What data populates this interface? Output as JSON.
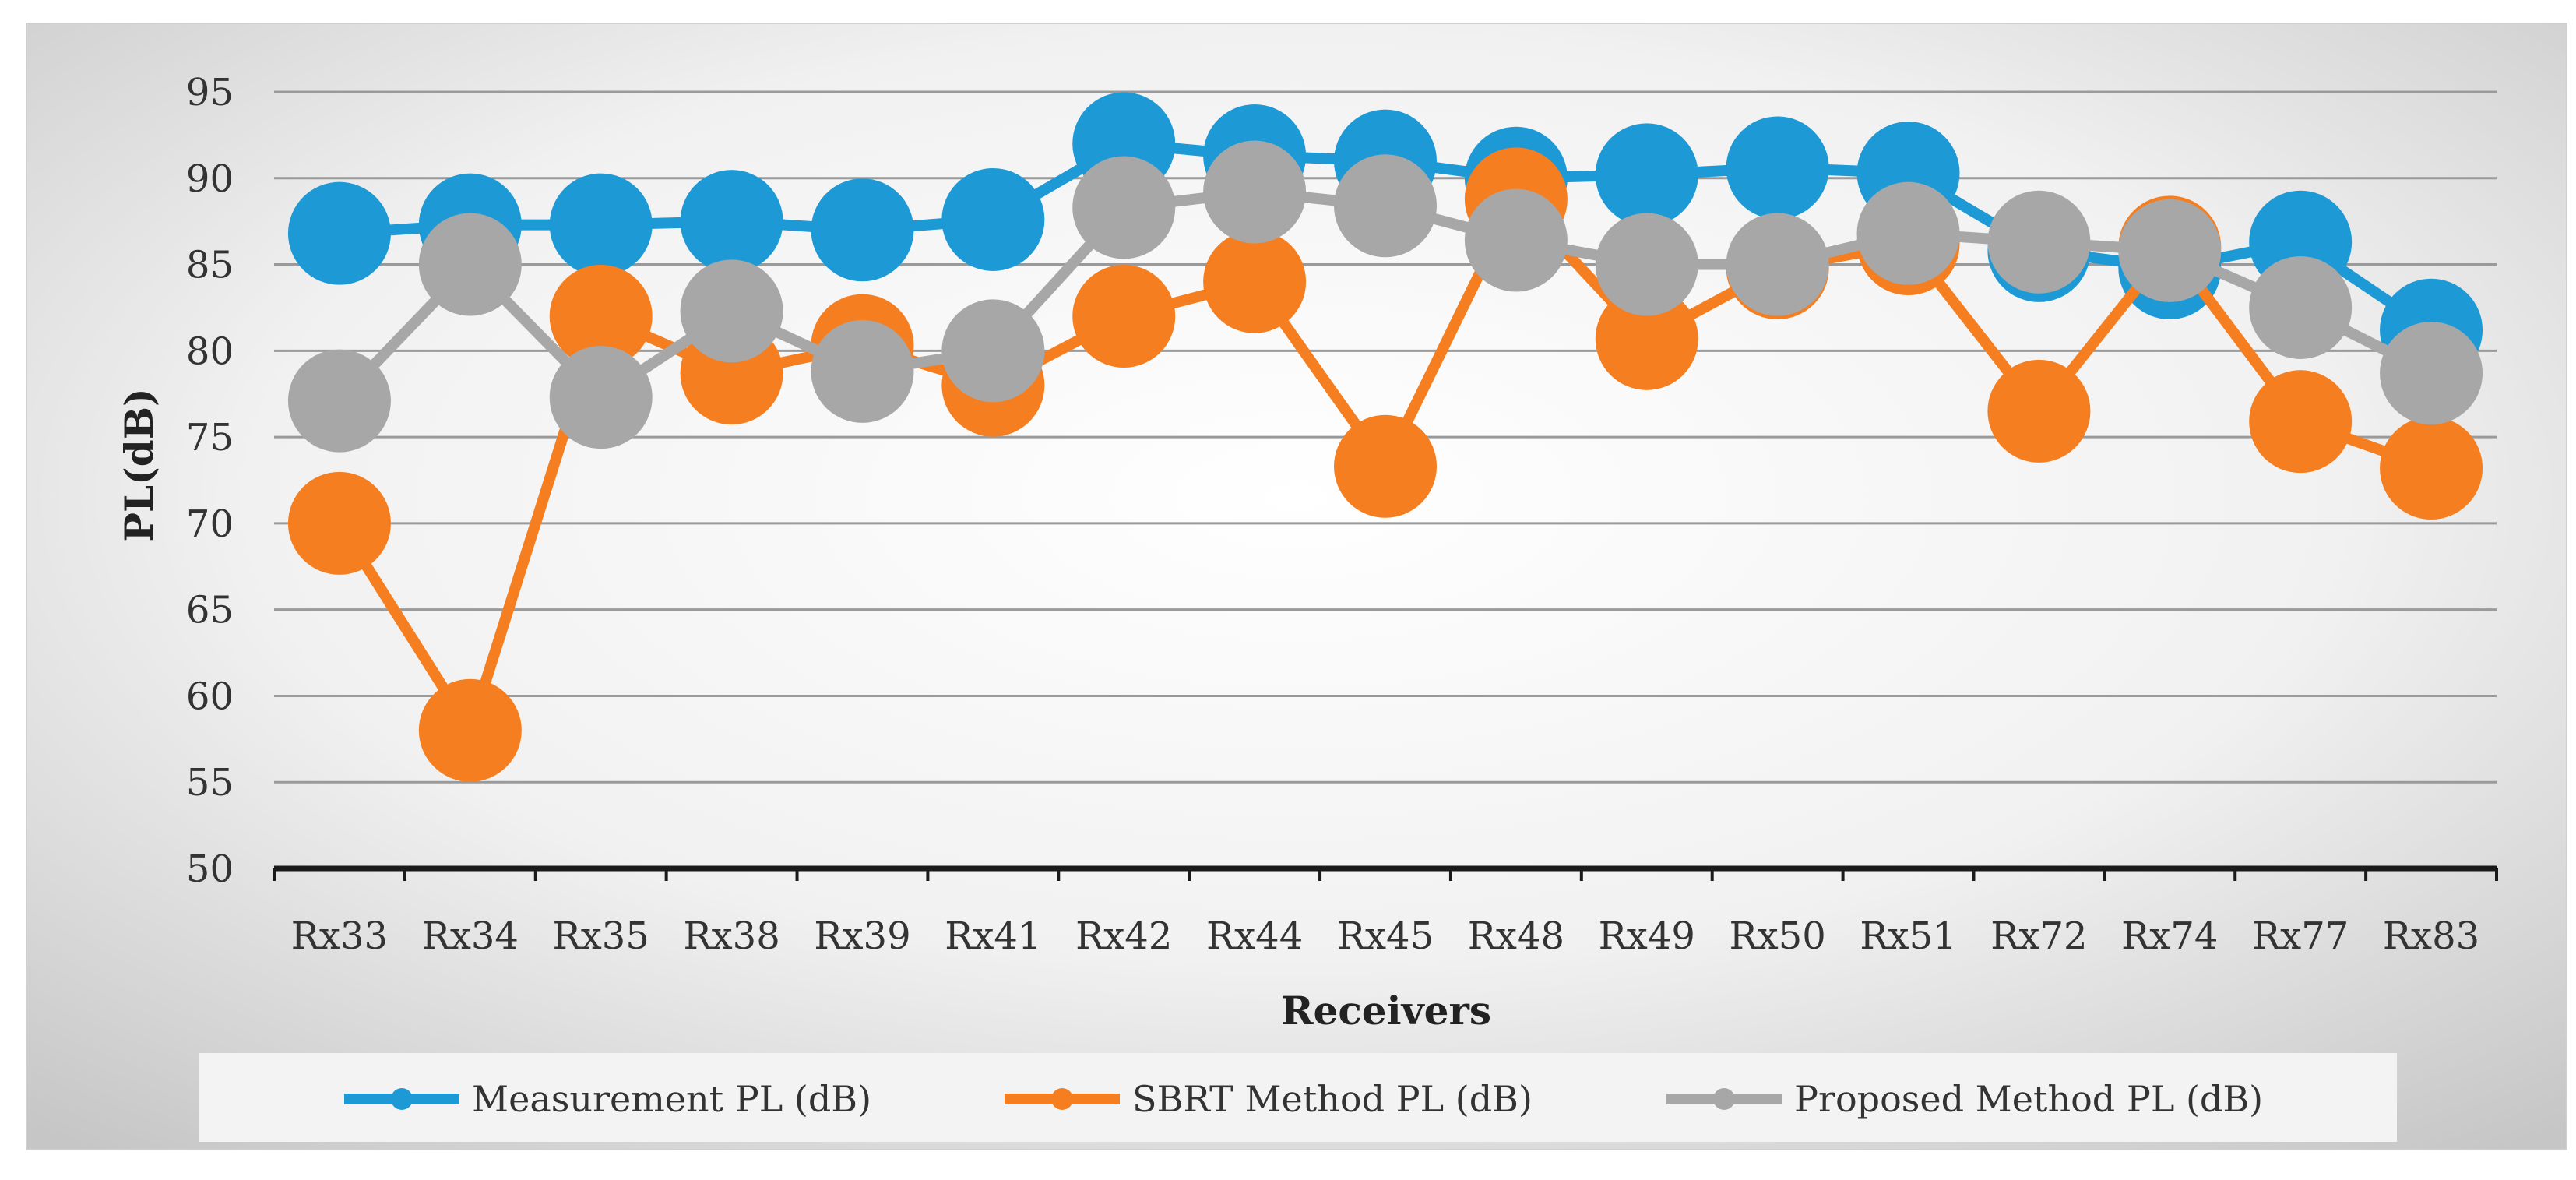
{
  "chart_data": {
    "type": "line",
    "title": "",
    "xlabel": "Receivers",
    "ylabel": "PL(dB)",
    "ylim": [
      50,
      95
    ],
    "yticks": [
      50,
      55,
      60,
      65,
      70,
      75,
      80,
      85,
      90,
      95
    ],
    "grid": true,
    "legend_position": "bottom",
    "categories": [
      "Rx33",
      "Rx34",
      "Rx35",
      "Rx38",
      "Rx39",
      "Rx41",
      "Rx42",
      "Rx44",
      "Rx45",
      "Rx48",
      "Rx49",
      "Rx50",
      "Rx51",
      "Rx72",
      "Rx74",
      "Rx77",
      "Rx83"
    ],
    "series": [
      {
        "name": "Measurement PL (dB)",
        "color": "#1d9ad6",
        "values": [
          86.8,
          87.3,
          87.3,
          87.5,
          87.0,
          87.6,
          92.0,
          91.3,
          91.0,
          90.0,
          90.2,
          90.6,
          90.3,
          85.8,
          84.8,
          86.3,
          81.2
        ]
      },
      {
        "name": "SBRT Method PL (dB)",
        "color": "#f57f20",
        "values": [
          70.0,
          58.0,
          82.0,
          78.7,
          80.3,
          78.0,
          82.0,
          84.0,
          73.3,
          88.8,
          80.7,
          84.8,
          86.2,
          76.5,
          86.0,
          75.9,
          73.2
        ]
      },
      {
        "name": "Proposed  Method PL (dB)",
        "color": "#a7a7a7",
        "values": [
          77.1,
          85.0,
          77.3,
          82.3,
          78.8,
          80.0,
          88.3,
          89.2,
          88.4,
          86.4,
          85.0,
          85.0,
          86.8,
          86.3,
          85.8,
          82.5,
          78.7
        ]
      }
    ]
  }
}
